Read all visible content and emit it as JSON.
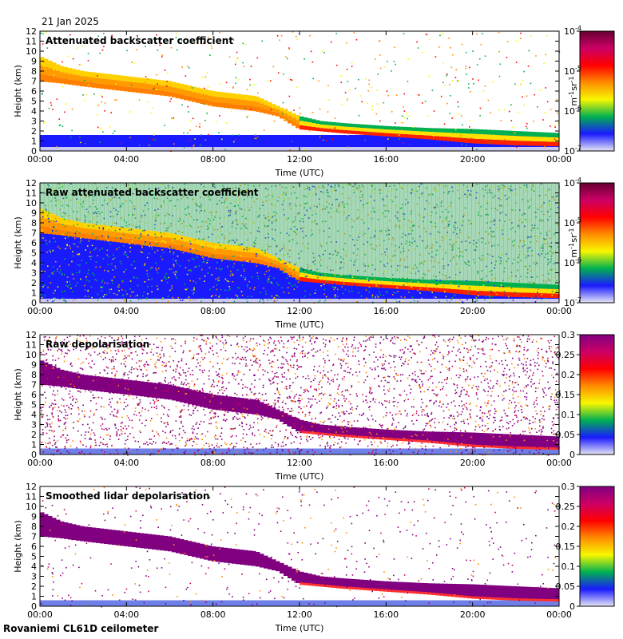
{
  "date": "21 Jan 2025",
  "site": "Rovaniemi CL61D ceilometer",
  "colors": {
    "scale_backscatter": [
      "#e6e6f5",
      "#1a1aff",
      "#00b050",
      "#f7f700",
      "#ff8c00",
      "#ff0000",
      "#cc0066",
      "#660033"
    ],
    "scale_depol": [
      "#e6e6f5",
      "#1a1aff",
      "#00b050",
      "#f7f700",
      "#ff8c00",
      "#ff0000",
      "#cc0066",
      "#800080"
    ],
    "depol_fill": "#800080"
  },
  "chart_data": [
    {
      "type": "heatmap",
      "title": "Attenuated backscatter coefficient",
      "xlabel": "Time (UTC)",
      "ylabel": "Height (km)",
      "x_ticks": [
        "00:00",
        "04:00",
        "08:00",
        "12:00",
        "16:00",
        "20:00",
        "00:00"
      ],
      "y_ticks": [
        "0",
        "1",
        "2",
        "3",
        "4",
        "5",
        "6",
        "7",
        "8",
        "9",
        "10",
        "11",
        "12"
      ],
      "xlim": [
        0,
        24
      ],
      "ylim": [
        0,
        12
      ],
      "colorbar": {
        "scale": "log",
        "ticks": [
          "10",
          "10",
          "10",
          "10"
        ],
        "tick_exponents": [
          "-7",
          "-6",
          "-5",
          "-4"
        ],
        "unit_base": [
          "m",
          "sr"
        ],
        "unit_exponents": [
          "-1",
          "-1"
        ]
      },
      "cloud_layer": {
        "time_h": [
          0,
          1,
          2,
          4,
          6,
          8,
          10,
          11,
          12,
          13,
          14,
          16,
          18,
          20,
          22,
          24
        ],
        "top_km": [
          9.5,
          8.5,
          8,
          7.5,
          7,
          6,
          5.5,
          4.5,
          3.5,
          3,
          2.8,
          2.5,
          2.3,
          2.2,
          2,
          1.8
        ],
        "base_km": [
          7,
          6.8,
          6.5,
          6,
          5.5,
          4.5,
          4,
          3.5,
          2.2,
          2,
          1.8,
          1.5,
          1.2,
          0.8,
          0.6,
          0.5
        ]
      },
      "noise": "low"
    },
    {
      "type": "heatmap",
      "title": "Raw attenuated backscatter coefficient",
      "xlabel": "Time (UTC)",
      "ylabel": "Height (km)",
      "x_ticks": [
        "00:00",
        "04:00",
        "08:00",
        "12:00",
        "16:00",
        "20:00",
        "00:00"
      ],
      "y_ticks": [
        "0",
        "1",
        "2",
        "3",
        "4",
        "5",
        "6",
        "7",
        "8",
        "9",
        "10",
        "11",
        "12"
      ],
      "xlim": [
        0,
        24
      ],
      "ylim": [
        0,
        12
      ],
      "colorbar": {
        "scale": "log",
        "ticks": [
          "10",
          "10",
          "10",
          "10"
        ],
        "tick_exponents": [
          "-7",
          "-6",
          "-5",
          "-4"
        ],
        "unit_base": [
          "m",
          "sr"
        ],
        "unit_exponents": [
          "-1",
          "-1"
        ]
      },
      "cloud_layer": {
        "time_h": [
          0,
          1,
          2,
          4,
          6,
          8,
          10,
          11,
          12,
          13,
          14,
          16,
          18,
          20,
          22,
          24
        ],
        "top_km": [
          9.5,
          8.5,
          8,
          7.5,
          7,
          6,
          5.5,
          4.5,
          3.5,
          3,
          2.8,
          2.5,
          2.3,
          2.2,
          2,
          1.8
        ],
        "base_km": [
          7,
          6.8,
          6.5,
          6,
          5.5,
          4.5,
          4,
          3.5,
          2.2,
          2,
          1.8,
          1.5,
          1.2,
          0.8,
          0.6,
          0.5
        ]
      },
      "noise": "high"
    },
    {
      "type": "heatmap",
      "title": "Raw depolarisation",
      "xlabel": "Time (UTC)",
      "ylabel": "Height (km)",
      "x_ticks": [
        "00:00",
        "04:00",
        "08:00",
        "12:00",
        "16:00",
        "20:00",
        "00:00"
      ],
      "y_ticks": [
        "0",
        "1",
        "2",
        "3",
        "4",
        "5",
        "6",
        "7",
        "8",
        "9",
        "10",
        "11",
        "12"
      ],
      "xlim": [
        0,
        24
      ],
      "ylim": [
        0,
        12
      ],
      "colorbar": {
        "scale": "linear",
        "range": [
          0,
          0.3
        ],
        "ticks": [
          "0",
          "0.05",
          "0.1",
          "0.15",
          "0.2",
          "0.25",
          "0.3"
        ]
      },
      "cloud_layer": {
        "time_h": [
          0,
          1,
          2,
          4,
          6,
          8,
          10,
          11,
          12,
          13,
          14,
          16,
          18,
          20,
          22,
          24
        ],
        "top_km": [
          9.5,
          8.5,
          8,
          7.5,
          7,
          6,
          5.5,
          4.5,
          3.5,
          3,
          2.8,
          2.5,
          2.3,
          2.2,
          2,
          1.8
        ],
        "base_km": [
          7,
          6.8,
          6.5,
          6,
          5.5,
          4.5,
          4,
          3.5,
          2.2,
          2,
          1.8,
          1.5,
          1.2,
          0.8,
          0.6,
          0.5
        ]
      },
      "noise": "high"
    },
    {
      "type": "heatmap",
      "title": "Smoothed lidar depolarisation",
      "xlabel": "Time (UTC)",
      "ylabel": "Height (km)",
      "x_ticks": [
        "00:00",
        "04:00",
        "08:00",
        "12:00",
        "16:00",
        "20:00",
        "00:00"
      ],
      "y_ticks": [
        "0",
        "1",
        "2",
        "3",
        "4",
        "5",
        "6",
        "7",
        "8",
        "9",
        "10",
        "11",
        "12"
      ],
      "xlim": [
        0,
        24
      ],
      "ylim": [
        0,
        12
      ],
      "colorbar": {
        "scale": "linear",
        "range": [
          0,
          0.3
        ],
        "ticks": [
          "0",
          "0.05",
          "0.1",
          "0.15",
          "0.2",
          "0.25",
          "0.3"
        ]
      },
      "cloud_layer": {
        "time_h": [
          0,
          1,
          2,
          4,
          6,
          8,
          10,
          11,
          12,
          13,
          14,
          16,
          18,
          20,
          22,
          24
        ],
        "top_km": [
          9.5,
          8.5,
          8,
          7.5,
          7,
          6,
          5.5,
          4.5,
          3.5,
          3,
          2.8,
          2.5,
          2.3,
          2.2,
          2,
          1.8
        ],
        "base_km": [
          7,
          6.8,
          6.5,
          6,
          5.5,
          4.5,
          4,
          3.5,
          2.2,
          2,
          1.8,
          1.5,
          1.2,
          0.8,
          0.6,
          0.5
        ]
      },
      "noise": "low"
    }
  ]
}
